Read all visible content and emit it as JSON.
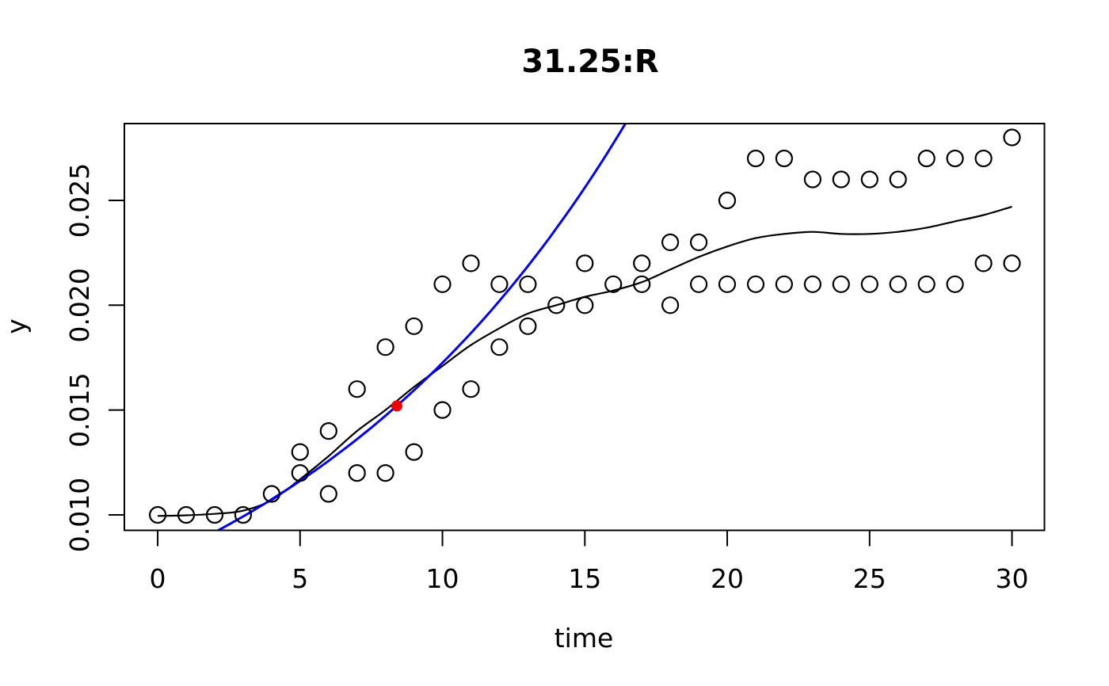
{
  "chart_data": {
    "type": "scatter",
    "title": "31.25:R",
    "xlabel": "time",
    "ylabel": "y",
    "x_ticks": [
      0,
      5,
      10,
      15,
      20,
      25,
      30
    ],
    "x_tick_labels": [
      "0",
      "5",
      "10",
      "15",
      "20",
      "25",
      "30"
    ],
    "y_ticks": [
      0.01,
      0.015,
      0.02,
      0.025
    ],
    "y_tick_labels": [
      "0.010",
      "0.015",
      "0.020",
      "0.025"
    ],
    "xlim": [
      -1.17,
      31.14
    ],
    "ylim": [
      0.009263,
      0.028663
    ],
    "grid": false,
    "legend": "none",
    "points": [
      [
        0,
        0.01
      ],
      [
        1,
        0.01
      ],
      [
        2,
        0.01
      ],
      [
        3,
        0.01
      ],
      [
        4,
        0.011
      ],
      [
        5,
        0.012
      ],
      [
        5,
        0.013
      ],
      [
        6,
        0.011
      ],
      [
        6,
        0.014
      ],
      [
        7,
        0.012
      ],
      [
        7,
        0.016
      ],
      [
        8,
        0.012
      ],
      [
        8,
        0.018
      ],
      [
        9,
        0.013
      ],
      [
        9,
        0.019
      ],
      [
        10,
        0.015
      ],
      [
        10,
        0.021
      ],
      [
        11,
        0.016
      ],
      [
        11,
        0.022
      ],
      [
        12,
        0.018
      ],
      [
        12,
        0.021
      ],
      [
        13,
        0.019
      ],
      [
        13,
        0.021
      ],
      [
        14,
        0.02
      ],
      [
        15,
        0.02
      ],
      [
        15,
        0.022
      ],
      [
        16,
        0.021
      ],
      [
        17,
        0.021
      ],
      [
        17,
        0.022
      ],
      [
        18,
        0.02
      ],
      [
        18,
        0.023
      ],
      [
        19,
        0.021
      ],
      [
        19,
        0.023
      ],
      [
        20,
        0.021
      ],
      [
        20,
        0.025
      ],
      [
        21,
        0.021
      ],
      [
        21,
        0.027
      ],
      [
        22,
        0.021
      ],
      [
        22,
        0.027
      ],
      [
        23,
        0.021
      ],
      [
        23,
        0.026
      ],
      [
        24,
        0.021
      ],
      [
        24,
        0.026
      ],
      [
        25,
        0.021
      ],
      [
        25,
        0.026
      ],
      [
        26,
        0.021
      ],
      [
        26,
        0.026
      ],
      [
        27,
        0.021
      ],
      [
        27,
        0.027
      ],
      [
        28,
        0.021
      ],
      [
        28,
        0.027
      ],
      [
        29,
        0.022
      ],
      [
        29,
        0.027
      ],
      [
        30,
        0.022
      ],
      [
        30,
        0.028
      ]
    ],
    "smooth_curve": [
      [
        0,
        0.00995
      ],
      [
        1,
        0.00998
      ],
      [
        2,
        0.01005
      ],
      [
        3,
        0.0102
      ],
      [
        4,
        0.0107
      ],
      [
        5,
        0.0117
      ],
      [
        6,
        0.0128
      ],
      [
        7,
        0.014
      ],
      [
        8,
        0.015
      ],
      [
        9,
        0.0161
      ],
      [
        10,
        0.0171
      ],
      [
        11,
        0.0181
      ],
      [
        12,
        0.0189
      ],
      [
        13,
        0.0196
      ],
      [
        14,
        0.02
      ],
      [
        15,
        0.0204
      ],
      [
        16,
        0.0207
      ],
      [
        17,
        0.0211
      ],
      [
        18,
        0.0217
      ],
      [
        19,
        0.0223
      ],
      [
        20,
        0.0228
      ],
      [
        21,
        0.0232
      ],
      [
        22,
        0.0234
      ],
      [
        23,
        0.0235
      ],
      [
        24,
        0.0234
      ],
      [
        25,
        0.0234
      ],
      [
        26,
        0.0235
      ],
      [
        27,
        0.0237
      ],
      [
        28,
        0.024
      ],
      [
        29,
        0.0243
      ],
      [
        30,
        0.0247
      ]
    ],
    "model_curve": {
      "type": "exponential",
      "a": 0.00783,
      "r": 0.079
    },
    "highlight_point": {
      "x": 8.4,
      "y": 0.0152
    },
    "colors": {
      "points": "#000000",
      "smooth_curve": "#000000",
      "model_curve": "#0000ff",
      "highlight_point": "#ee0000",
      "background": "#ffffff"
    }
  }
}
